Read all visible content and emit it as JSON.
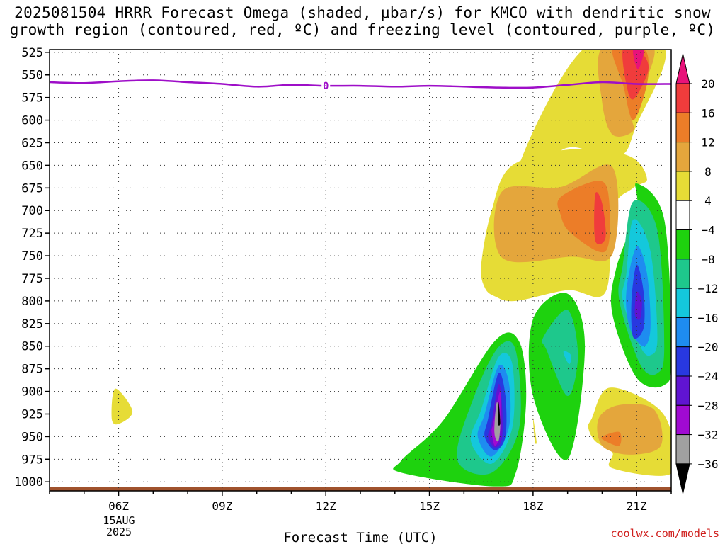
{
  "title": {
    "line1": "2025081504 HRRR Forecast Omega (shaded, μbar/s) for KMCO with dendritic snow",
    "line2": "growth region (contoured, red, ºC) and freezing level (contoured, purple, ºC)"
  },
  "credit": "coolwx.com/models",
  "chart_data": {
    "type": "heatmap",
    "xlabel": "Forecast Time (UTC)",
    "x_ticks": [
      "06Z",
      "09Z",
      "12Z",
      "15Z",
      "18Z",
      "21Z"
    ],
    "x_tick_hours": [
      6,
      9,
      12,
      15,
      18,
      21
    ],
    "xlim_hours": [
      4.0,
      22.0
    ],
    "date_label": [
      "15AUG",
      "2025"
    ],
    "y_ticks": [
      525,
      550,
      575,
      600,
      625,
      650,
      675,
      700,
      725,
      750,
      775,
      800,
      825,
      850,
      875,
      900,
      925,
      950,
      975,
      1000
    ],
    "ylim_hPa": [
      1010,
      515
    ],
    "grid": true,
    "colorbar": {
      "levels": [
        20,
        16,
        12,
        8,
        4,
        -4,
        -8,
        -12,
        -16,
        -20,
        -24,
        -28,
        -32,
        -36
      ],
      "tick_labels": [
        "20",
        "16",
        "12",
        "8",
        "4",
        "−4",
        "−8",
        "−12",
        "−16",
        "−20",
        "−24",
        "−28",
        "−32",
        "−36"
      ],
      "bins": [
        {
          "range": ">20",
          "color": "#e8127a"
        },
        {
          "range": "16 to 20",
          "color": "#f03c3c"
        },
        {
          "range": "12 to 16",
          "color": "#ec7d28"
        },
        {
          "range": "8 to 12",
          "color": "#e4a63c"
        },
        {
          "range": "4 to 8",
          "color": "#e6dc36"
        },
        {
          "range": "-4 to 4",
          "color": "#ffffff"
        },
        {
          "range": "-8 to -4",
          "color": "#1ed20e"
        },
        {
          "range": "-12 to -8",
          "color": "#1ec88c"
        },
        {
          "range": "-16 to -12",
          "color": "#14c8dc"
        },
        {
          "range": "-20 to -16",
          "color": "#1e8cf0"
        },
        {
          "range": "-24 to -20",
          "color": "#2838e0"
        },
        {
          "range": "-28 to -24",
          "color": "#6014d2"
        },
        {
          "range": "-32 to -28",
          "color": "#a00ad2"
        },
        {
          "range": "-36 to -32",
          "color": "#a0a0a0"
        },
        {
          "range": "<-36",
          "color": "#000000"
        }
      ]
    },
    "freezing_level": {
      "label": "0",
      "color": "#9e0ec8",
      "hours": [
        4.0,
        5.0,
        6.0,
        7.0,
        8.0,
        9.0,
        10.0,
        11.0,
        12.0,
        13.0,
        14.0,
        15.0,
        16.0,
        17.0,
        18.0,
        19.0,
        20.0,
        21.0,
        22.0
      ],
      "hPa": [
        558,
        559,
        557,
        556,
        558,
        560,
        563,
        561,
        562,
        562,
        563,
        562,
        563,
        564,
        564,
        561,
        558,
        560,
        560
      ]
    },
    "omega_regions": [
      {
        "bin": "4 to 8",
        "hours": [
          19.5,
          21.8,
          21.0,
          20.5,
          19.2,
          18.6,
          17.6
        ],
        "hPa": [
          520,
          520,
          605,
          640,
          630,
          637,
          650
        ]
      },
      {
        "bin": "4 to 8",
        "hours": [
          17.4,
          19.2,
          20.8,
          21.3,
          20.9,
          20.3,
          20.1,
          19.0,
          17.5,
          16.9,
          16.6,
          16.5,
          16.8
        ],
        "hPa": [
          650,
          632,
          640,
          665,
          675,
          700,
          790,
          788,
          800,
          795,
          785,
          760,
          700
        ]
      },
      {
        "bin": "8 to 12",
        "hours": [
          17.1,
          18.8,
          20.3,
          20.3,
          19.1,
          17.1
        ],
        "hPa": [
          679,
          674,
          652,
          748,
          751,
          752
        ]
      },
      {
        "bin": "12 to 16",
        "hours": [
          18.8,
          19.9,
          20.2,
          20.1,
          19.1,
          18.8
        ],
        "hPa": [
          685,
          667,
          688,
          745,
          725,
          705
        ]
      },
      {
        "bin": "16 to 20",
        "hours": [
          19.8,
          20.0,
          20.1,
          19.8
        ],
        "hPa": [
          682,
          692,
          730,
          733
        ]
      },
      {
        "bin": "8 to 12",
        "hours": [
          20.0,
          21.5,
          20.9,
          20.9,
          20.3,
          20.0
        ],
        "hPa": [
          520,
          520,
          590,
          612,
          616,
          580
        ]
      },
      {
        "bin": "12 to 16",
        "hours": [
          20.3,
          20.9,
          21.3,
          21.3,
          20.9,
          20.6
        ],
        "hPa": [
          522,
          522,
          526,
          560,
          600,
          560
        ]
      },
      {
        "bin": "16 to 20",
        "hours": [
          20.6,
          21.0,
          21.3,
          21.3,
          20.9,
          20.7
        ],
        "hPa": [
          522,
          522,
          534,
          550,
          577,
          560
        ]
      },
      {
        "bin": ">20",
        "hours": [
          20.9,
          21.2,
          21.1,
          21.0
        ],
        "hPa": [
          522,
          522,
          540,
          542
        ]
      },
      {
        "bin": "4 to 8",
        "hours": [
          19.7,
          20.2,
          21.5,
          22.0,
          22.0,
          20.3,
          20.3,
          19.8,
          19.6
        ],
        "hPa": [
          930,
          896,
          915,
          945,
          991,
          985,
          968,
          955,
          940
        ]
      },
      {
        "bin": "8 to 12",
        "hours": [
          19.9,
          20.5,
          21.5,
          21.7,
          20.8,
          20.0
        ],
        "hPa": [
          930,
          915,
          920,
          960,
          970,
          960
        ]
      },
      {
        "bin": "12 to 16",
        "hours": [
          20.0,
          20.5,
          20.5,
          20.1
        ],
        "hPa": [
          950,
          945,
          960,
          955
        ]
      },
      {
        "bin": "4 to 8",
        "hours": [
          18.0,
          18.1,
          18.05
        ],
        "hPa": [
          929,
          955,
          955
        ]
      },
      {
        "bin": "4 to 8",
        "hours": [
          5.9,
          6.4,
          6.0,
          5.8
        ],
        "hPa": [
          897,
          922,
          936,
          930
        ]
      },
      {
        "bin": "-8 to -4",
        "hours": [
          14.2,
          15.4,
          16.9,
          17.6,
          17.8,
          17.5,
          16.9,
          14.2
        ],
        "hPa": [
          976,
          932,
          844,
          845,
          910,
          990,
          1005,
          990
        ]
      },
      {
        "bin": "-12 to -8",
        "hours": [
          16.3,
          17.0,
          17.5,
          17.6,
          16.8,
          15.8
        ],
        "hPa": [
          905,
          851,
          855,
          940,
          990,
          975
        ]
      },
      {
        "bin": "-16 to -12",
        "hours": [
          16.5,
          17.0,
          17.4,
          17.4,
          16.8,
          16.2
        ],
        "hPa": [
          920,
          862,
          870,
          940,
          980,
          955
        ]
      },
      {
        "bin": "-20 to -16",
        "hours": [
          16.6,
          17.0,
          17.3,
          17.3,
          16.8,
          16.4
        ],
        "hPa": [
          925,
          872,
          890,
          940,
          972,
          950
        ]
      },
      {
        "bin": "-24 to -20",
        "hours": [
          16.7,
          17.0,
          17.2,
          17.2,
          16.9,
          16.6
        ],
        "hPa": [
          930,
          880,
          905,
          950,
          965,
          950
        ]
      },
      {
        "bin": "-28 to -24",
        "hours": [
          16.8,
          17.0,
          17.1,
          17.1,
          16.9,
          16.7
        ],
        "hPa": [
          935,
          892,
          915,
          952,
          962,
          950
        ]
      },
      {
        "bin": "-32 to -28",
        "hours": [
          16.85,
          17.05,
          17.05,
          16.9,
          16.8
        ],
        "hPa": [
          935,
          900,
          945,
          960,
          945
        ]
      },
      {
        "bin": "-36 to -32",
        "hours": [
          16.95,
          17.05,
          17.0,
          16.88
        ],
        "hPa": [
          912,
          932,
          955,
          945
        ]
      },
      {
        "bin": "<-36",
        "hours": [
          17.0,
          17.05,
          16.98
        ],
        "hPa": [
          912,
          935,
          935
        ]
      },
      {
        "bin": "-8 to -4",
        "hours": [
          18.0,
          19.0,
          19.5,
          19.0,
          18.0
        ],
        "hPa": [
          820,
          792,
          850,
          975,
          905
        ]
      },
      {
        "bin": "-12 to -8",
        "hours": [
          18.3,
          19.0,
          19.3,
          19.0,
          18.4
        ],
        "hPa": [
          840,
          810,
          860,
          905,
          855
        ]
      },
      {
        "bin": "-16 to -12",
        "hours": [
          18.9,
          19.1,
          19.05,
          18.9
        ],
        "hPa": [
          855,
          860,
          870,
          860
        ]
      },
      {
        "bin": "-8 to -4",
        "hours": [
          21.0,
          21.8,
          22.0,
          21.8,
          21.0,
          20.3,
          20.4,
          21.0
        ],
        "hPa": [
          670,
          710,
          860,
          893,
          885,
          815,
          765,
          700
        ]
      },
      {
        "bin": "-12 to -8",
        "hours": [
          20.9,
          21.6,
          21.8,
          21.6,
          21.1,
          20.5,
          20.6
        ],
        "hPa": [
          690,
          722,
          850,
          880,
          870,
          800,
          760
        ]
      },
      {
        "bin": "-16 to -12",
        "hours": [
          20.9,
          21.4,
          21.6,
          21.4,
          21.1,
          20.6,
          20.7
        ],
        "hPa": [
          710,
          745,
          840,
          860,
          850,
          800,
          770
        ]
      },
      {
        "bin": "-20 to -16",
        "hours": [
          21.0,
          21.3,
          21.4,
          21.2,
          20.8,
          20.7
        ],
        "hPa": [
          740,
          770,
          830,
          850,
          830,
          790
        ]
      },
      {
        "bin": "-24 to -20",
        "hours": [
          21.0,
          21.2,
          21.2,
          20.9,
          20.85
        ],
        "hPa": [
          760,
          790,
          830,
          840,
          800
        ]
      },
      {
        "bin": "-28 to -24",
        "hours": [
          21.0,
          21.15,
          21.1,
          20.95
        ],
        "hPa": [
          790,
          800,
          820,
          815
        ]
      }
    ]
  }
}
